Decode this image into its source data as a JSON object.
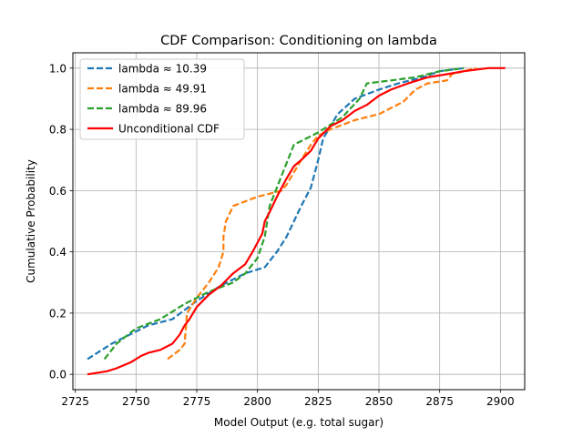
{
  "chart_data": {
    "type": "line",
    "title": "CDF Comparison: Conditioning on lambda",
    "xlabel": "Model Output (e.g. total sugar)",
    "ylabel": "Cumulative Probability",
    "xlim": [
      2724,
      2910
    ],
    "ylim": [
      -0.05,
      1.05
    ],
    "xticks": [
      2725,
      2750,
      2775,
      2800,
      2825,
      2850,
      2875,
      2900
    ],
    "yticks": [
      0.0,
      0.2,
      0.4,
      0.6,
      0.8,
      1.0
    ],
    "ytick_labels": [
      "0.0",
      "0.2",
      "0.4",
      "0.6",
      "0.8",
      "1.0"
    ],
    "grid": true,
    "legend_position": "top-left",
    "series": [
      {
        "name": "lambda ≈ 10.39",
        "color": "#1f77b4",
        "style": "dashed",
        "points": [
          [
            2730,
            0.05
          ],
          [
            2740,
            0.1
          ],
          [
            2750,
            0.14
          ],
          [
            2755,
            0.16
          ],
          [
            2765,
            0.18
          ],
          [
            2775,
            0.24
          ],
          [
            2785,
            0.29
          ],
          [
            2795,
            0.33
          ],
          [
            2803,
            0.35
          ],
          [
            2808,
            0.4
          ],
          [
            2812,
            0.45
          ],
          [
            2818,
            0.55
          ],
          [
            2822,
            0.61
          ],
          [
            2825,
            0.7
          ],
          [
            2827,
            0.77
          ],
          [
            2833,
            0.85
          ],
          [
            2840,
            0.9
          ],
          [
            2850,
            0.93
          ],
          [
            2858,
            0.95
          ],
          [
            2868,
            0.97
          ],
          [
            2875,
            0.99
          ],
          [
            2885,
            1.0
          ]
        ]
      },
      {
        "name": "lambda ≈ 49.91",
        "color": "#ff7f0e",
        "style": "dashed",
        "points": [
          [
            2763,
            0.05
          ],
          [
            2768,
            0.08
          ],
          [
            2770,
            0.1
          ],
          [
            2771,
            0.2
          ],
          [
            2775,
            0.25
          ],
          [
            2780,
            0.3
          ],
          [
            2784,
            0.35
          ],
          [
            2786,
            0.4
          ],
          [
            2786,
            0.45
          ],
          [
            2787,
            0.5
          ],
          [
            2790,
            0.55
          ],
          [
            2800,
            0.58
          ],
          [
            2810,
            0.6
          ],
          [
            2812,
            0.62
          ],
          [
            2815,
            0.66
          ],
          [
            2818,
            0.7
          ],
          [
            2822,
            0.75
          ],
          [
            2825,
            0.78
          ],
          [
            2830,
            0.8
          ],
          [
            2840,
            0.83
          ],
          [
            2850,
            0.85
          ],
          [
            2860,
            0.89
          ],
          [
            2865,
            0.93
          ],
          [
            2870,
            0.95
          ],
          [
            2878,
            0.96
          ],
          [
            2880,
            0.98
          ],
          [
            2890,
            1.0
          ]
        ]
      },
      {
        "name": "lambda ≈ 89.96",
        "color": "#2ca02c",
        "style": "dashed",
        "points": [
          [
            2737,
            0.05
          ],
          [
            2742,
            0.1
          ],
          [
            2750,
            0.15
          ],
          [
            2760,
            0.18
          ],
          [
            2770,
            0.23
          ],
          [
            2780,
            0.27
          ],
          [
            2790,
            0.3
          ],
          [
            2795,
            0.33
          ],
          [
            2800,
            0.38
          ],
          [
            2803,
            0.45
          ],
          [
            2805,
            0.55
          ],
          [
            2810,
            0.65
          ],
          [
            2815,
            0.75
          ],
          [
            2825,
            0.79
          ],
          [
            2835,
            0.84
          ],
          [
            2842,
            0.9
          ],
          [
            2845,
            0.95
          ],
          [
            2855,
            0.96
          ],
          [
            2865,
            0.97
          ],
          [
            2875,
            0.99
          ],
          [
            2885,
            1.0
          ]
        ]
      },
      {
        "name": "Unconditional CDF",
        "color": "#ff0000",
        "style": "solid",
        "points": [
          [
            2730,
            0.0
          ],
          [
            2738,
            0.01
          ],
          [
            2742,
            0.02
          ],
          [
            2745,
            0.03
          ],
          [
            2748,
            0.04
          ],
          [
            2750,
            0.05
          ],
          [
            2752,
            0.06
          ],
          [
            2755,
            0.07
          ],
          [
            2760,
            0.08
          ],
          [
            2765,
            0.1
          ],
          [
            2768,
            0.13
          ],
          [
            2770,
            0.16
          ],
          [
            2772,
            0.18
          ],
          [
            2775,
            0.22
          ],
          [
            2780,
            0.26
          ],
          [
            2785,
            0.29
          ],
          [
            2790,
            0.33
          ],
          [
            2795,
            0.36
          ],
          [
            2798,
            0.4
          ],
          [
            2800,
            0.43
          ],
          [
            2802,
            0.46
          ],
          [
            2803,
            0.5
          ],
          [
            2805,
            0.53
          ],
          [
            2808,
            0.58
          ],
          [
            2810,
            0.61
          ],
          [
            2812,
            0.64
          ],
          [
            2815,
            0.68
          ],
          [
            2818,
            0.7
          ],
          [
            2822,
            0.73
          ],
          [
            2825,
            0.77
          ],
          [
            2830,
            0.81
          ],
          [
            2835,
            0.83
          ],
          [
            2840,
            0.86
          ],
          [
            2845,
            0.88
          ],
          [
            2850,
            0.91
          ],
          [
            2855,
            0.93
          ],
          [
            2862,
            0.95
          ],
          [
            2870,
            0.97
          ],
          [
            2878,
            0.98
          ],
          [
            2885,
            0.99
          ],
          [
            2895,
            1.0
          ],
          [
            2902,
            1.0
          ]
        ]
      }
    ]
  }
}
